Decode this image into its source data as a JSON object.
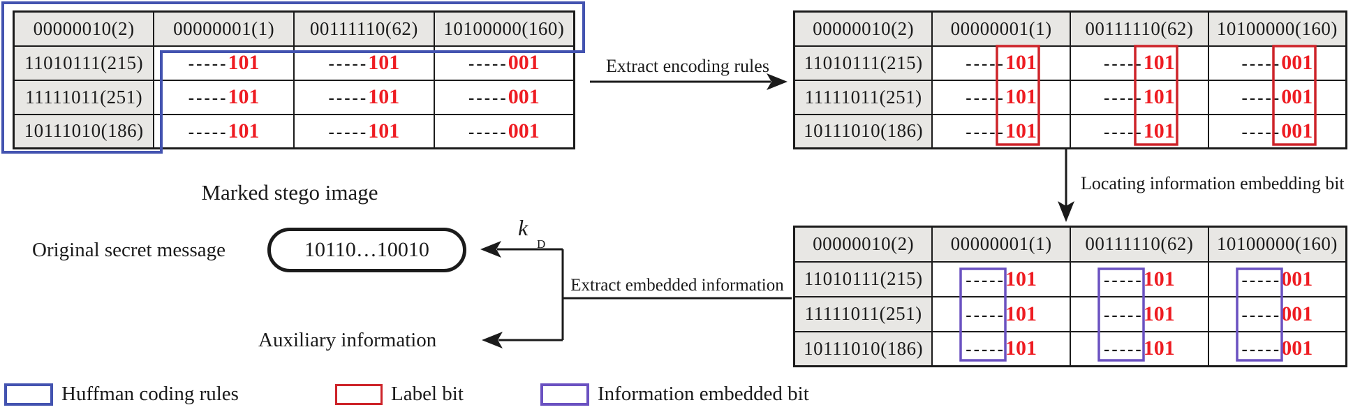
{
  "colors": {
    "blue": "#4353b0",
    "red_box": "#cd2329",
    "red_text": "#ee1c22",
    "purple": "#6a51c1",
    "cell_gray": "#e8e7e4",
    "ink": "#1b1b1b"
  },
  "table": {
    "headers": [
      "00000010(2)",
      "00000001(1)",
      "00111110(62)",
      "10100000(160)"
    ],
    "row_labels": [
      "11010111(215)",
      "11111011(251)",
      "10111010(186)"
    ],
    "cell_prefix": "-----",
    "cell_values": [
      [
        "101",
        "101",
        "001"
      ],
      [
        "101",
        "101",
        "001"
      ],
      [
        "101",
        "101",
        "001"
      ]
    ]
  },
  "captions": {
    "marked_stego": "Marked stego image"
  },
  "arrows": {
    "extract_encoding": "Extract encoding rules",
    "locating": "Locating information embedding bit",
    "extract_embedded": "Extract embedded information",
    "key_symbol": "k",
    "key_subscript": "D"
  },
  "outputs": {
    "secret_label": "Original secret message",
    "secret_value": "10110…10010",
    "auxiliary_label": "Auxiliary information"
  },
  "legend": {
    "huffman": "Huffman coding rules",
    "label_bit": "Label bit",
    "embedded_bit": "Information embedded bit"
  }
}
